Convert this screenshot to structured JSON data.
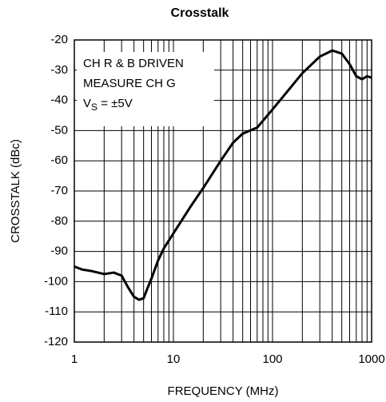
{
  "chart_data": {
    "type": "line",
    "title": "Crosstalk",
    "x_label": "FREQUENCY (MHz)",
    "y_label": "CROSSTALK (dBc)",
    "annotations": [
      "CH R & B DRIVEN",
      "MEASURE CH G",
      [
        "V",
        "S",
        " = ±5V"
      ]
    ],
    "x_log": true,
    "grid": true,
    "minor_grid": true,
    "xlim": [
      1,
      1000
    ],
    "xticks": [
      1,
      10,
      100,
      1000
    ],
    "ylim": [
      -120,
      -20
    ],
    "yticks": [
      -120,
      -110,
      -100,
      -90,
      -80,
      -70,
      -60,
      -50,
      -40,
      -30,
      -20
    ],
    "x": [
      1,
      1.2,
      1.5,
      2,
      2.5,
      3,
      3.5,
      4,
      4.5,
      5,
      5.5,
      6,
      7,
      8,
      10,
      15,
      20,
      30,
      40,
      50,
      70,
      100,
      150,
      200,
      300,
      400,
      500,
      600,
      700,
      800,
      900,
      1000
    ],
    "series": [
      {
        "color": "#000000",
        "values": [
          -95,
          -96,
          -96.5,
          -97.5,
          -97,
          -98,
          -102,
          -105,
          -106,
          -105.5,
          -102,
          -99,
          -93,
          -89,
          -84,
          -75,
          -69,
          -60,
          -54,
          -51,
          -49,
          -43,
          -36,
          -31,
          -25.5,
          -23.5,
          -24.5,
          -28,
          -32,
          -33,
          -32,
          -32.5
        ]
      }
    ]
  }
}
